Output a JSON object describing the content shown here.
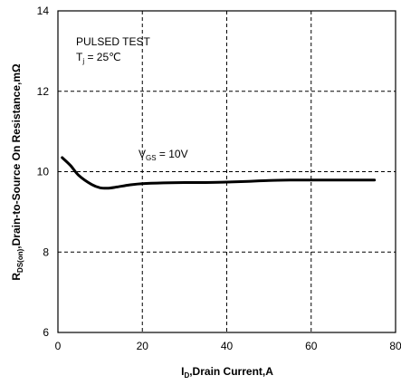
{
  "chart_data": {
    "type": "line",
    "xlabel": {
      "main": "I",
      "sub": "D",
      "rest": ",Drain Current,A"
    },
    "ylabel": {
      "main": "R",
      "sub": "DS(on)",
      "rest": ",Drain-to-Source On Resistance,mΩ"
    },
    "xlim": [
      0,
      80
    ],
    "ylim": [
      6,
      14
    ],
    "xticks": [
      "0",
      "20",
      "40",
      "60",
      "80"
    ],
    "yticks": [
      "6",
      "8",
      "10",
      "12",
      "14"
    ],
    "grid": true,
    "annotations": {
      "test": "PULSED TEST",
      "tj": {
        "main": "T",
        "sub": "j",
        "rest": " = 25℃"
      },
      "vgs": {
        "main": "V",
        "sub": "GS",
        "rest": " = 10V"
      }
    },
    "series": [
      {
        "x": [
          1,
          3,
          5,
          8,
          10,
          12,
          14,
          17,
          20,
          25,
          30,
          35,
          40,
          45,
          50,
          55,
          60,
          65,
          70,
          75
        ],
        "y": [
          10.35,
          10.15,
          9.9,
          9.68,
          9.6,
          9.59,
          9.62,
          9.67,
          9.7,
          9.72,
          9.73,
          9.73,
          9.74,
          9.76,
          9.78,
          9.79,
          9.79,
          9.79,
          9.79,
          9.79
        ]
      }
    ]
  }
}
